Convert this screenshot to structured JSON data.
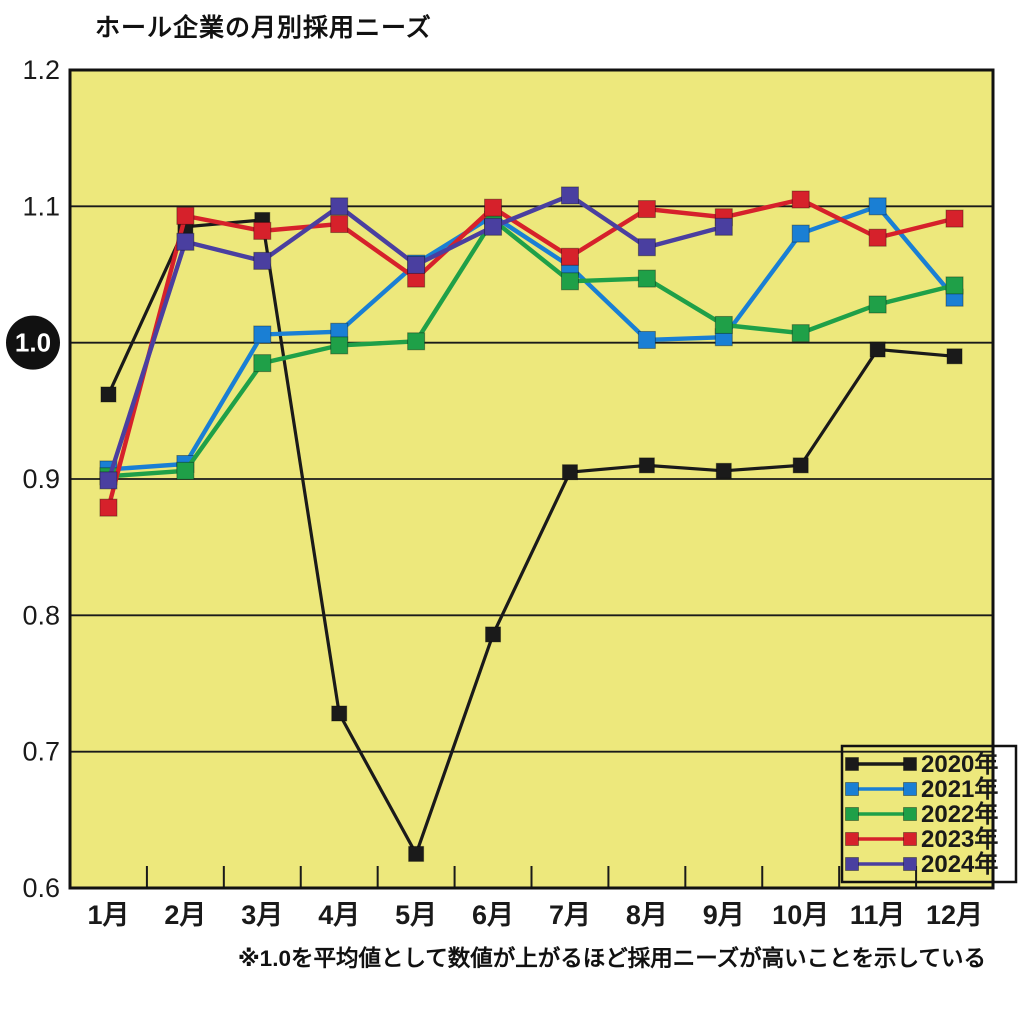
{
  "page": {
    "title": "ホール企業の月別採用ニーズ",
    "footnote": "※1.0を平均値として数値が上がるほど採用ニーズが高いことを示している"
  },
  "colors": {
    "background": "#FFFFFF",
    "plot_background": "#EDE87C",
    "grid": "#1A1A1A",
    "axis_border": "#111111",
    "badge_background": "#111111",
    "badge_text": "#FFFFFF",
    "label_text": "#1A1A1A"
  },
  "chart_data": {
    "type": "line",
    "title": "ホール企業の月別採用ニーズ",
    "annotation": "※1.0を平均値として数値が上がるほど採用ニーズが高いことを示している",
    "x_categories": [
      "1月",
      "2月",
      "3月",
      "4月",
      "5月",
      "6月",
      "7月",
      "8月",
      "9月",
      "10月",
      "11月",
      "12月"
    ],
    "ylim": [
      0.6,
      1.2
    ],
    "y_ticks": [
      1.2,
      1.1,
      1.0,
      0.9,
      0.8,
      0.7,
      0.6
    ],
    "y_tick_labels": [
      "1.2",
      "1.1",
      "1.0",
      "0.9",
      "0.8",
      "0.7",
      "0.6"
    ],
    "highlighted_tick": "1.0",
    "highlighted_tick_value": 1.0,
    "grid": true,
    "legend_position": "bottom-right",
    "series": [
      {
        "name": "2020年",
        "color": "#1A1A1A",
        "values": [
          0.962,
          1.085,
          1.09,
          0.728,
          0.625,
          0.786,
          0.905,
          0.91,
          0.906,
          0.91,
          0.995,
          0.99
        ]
      },
      {
        "name": "2021年",
        "color": "#1A7FD4",
        "values": [
          0.907,
          0.911,
          1.006,
          1.008,
          1.058,
          1.093,
          1.056,
          1.002,
          1.004,
          1.08,
          1.1,
          1.033
        ]
      },
      {
        "name": "2022年",
        "color": "#1FA048",
        "values": [
          0.902,
          0.906,
          0.985,
          0.998,
          1.001,
          1.09,
          1.045,
          1.047,
          1.013,
          1.007,
          1.028,
          1.042
        ]
      },
      {
        "name": "2023年",
        "color": "#D6212B",
        "values": [
          0.879,
          1.093,
          1.082,
          1.087,
          1.047,
          1.099,
          1.063,
          1.098,
          1.092,
          1.105,
          1.077,
          1.091
        ]
      },
      {
        "name": "2024年",
        "color": "#4A3FA0",
        "values": [
          0.899,
          1.074,
          1.06,
          1.1,
          1.057,
          1.085,
          1.108,
          1.07,
          1.085,
          null,
          null,
          null
        ]
      }
    ]
  }
}
